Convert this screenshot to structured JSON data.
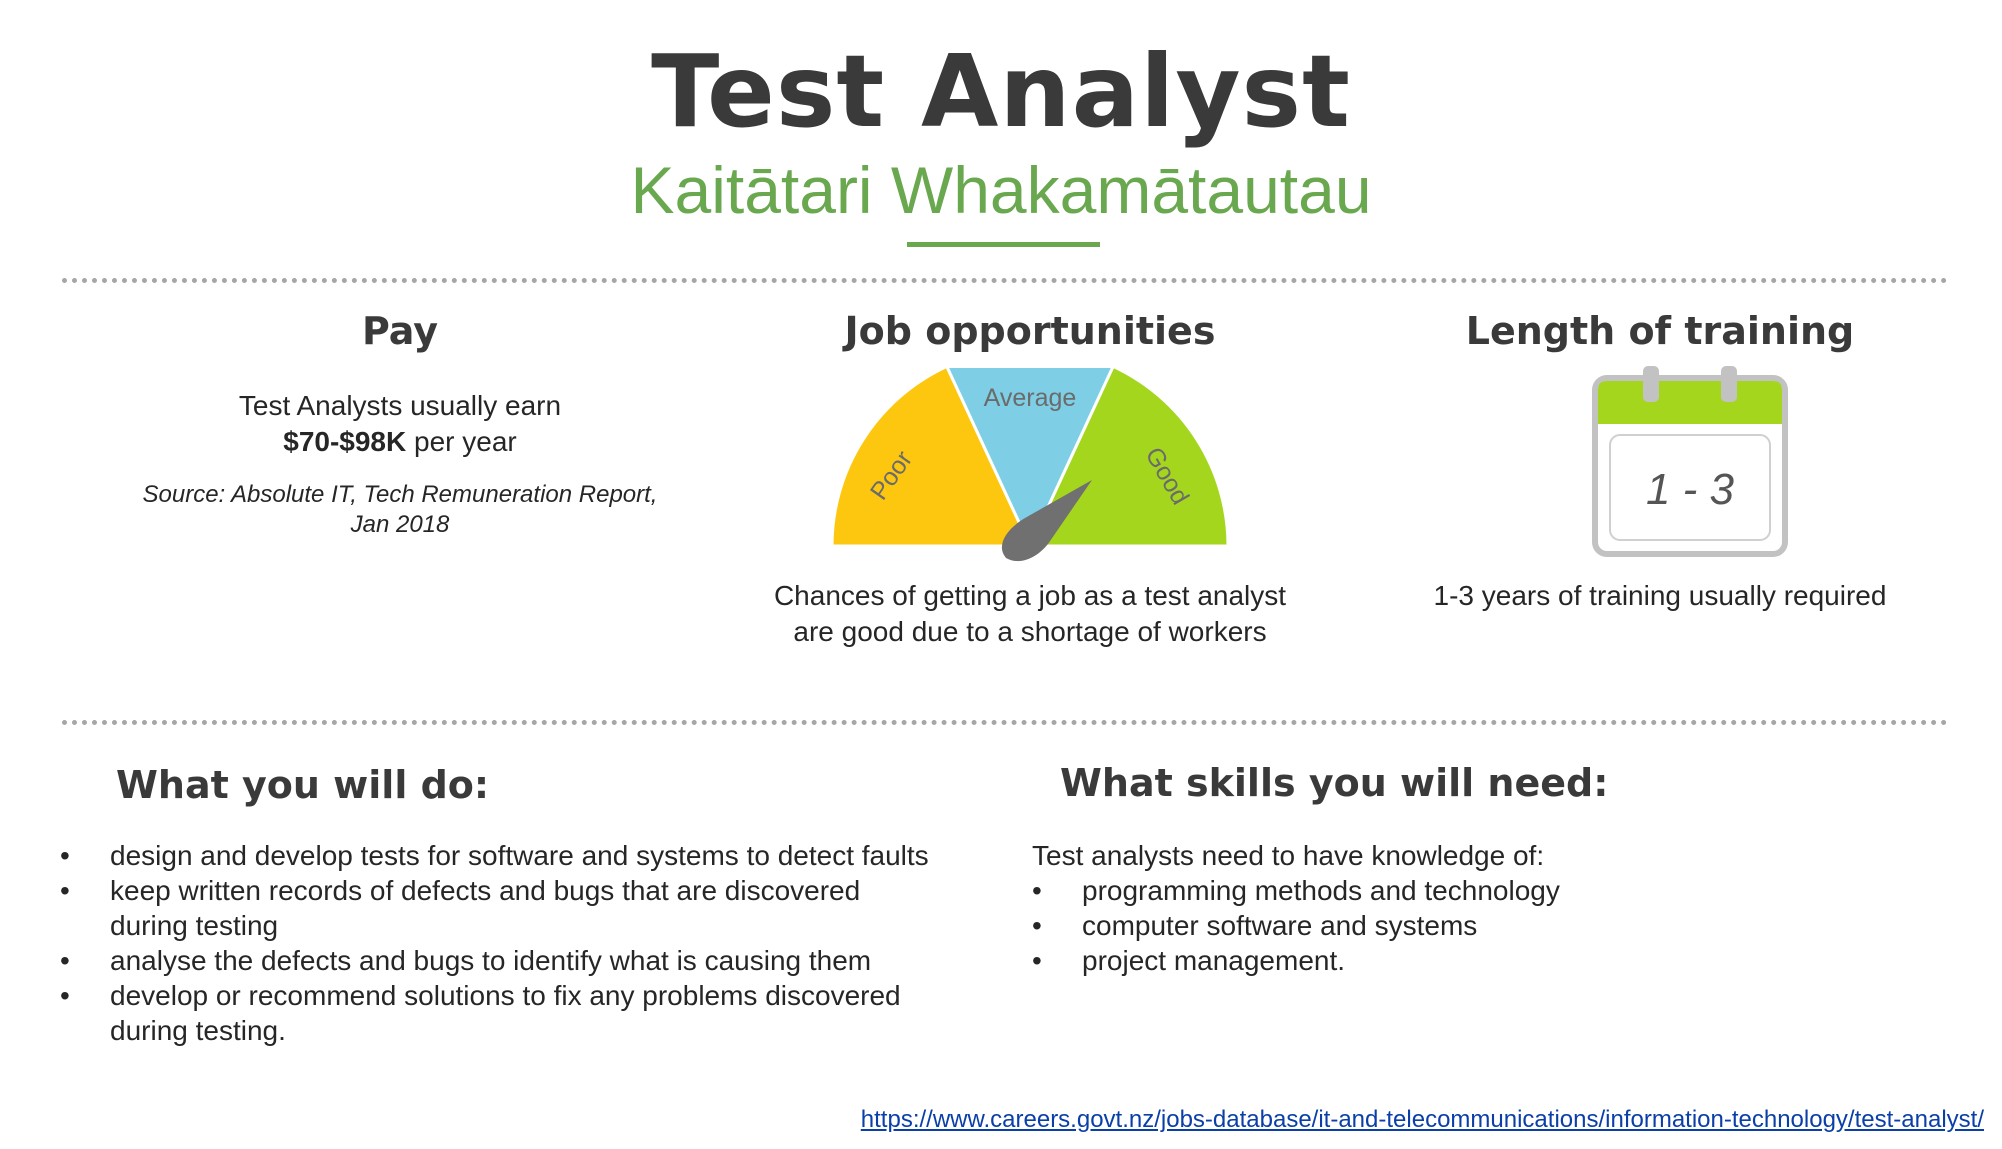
{
  "header": {
    "title": "Test Analyst",
    "subtitle": "Kaitātari Whakamātautau"
  },
  "pay": {
    "heading": "Pay",
    "line1": "Test Analysts usually earn",
    "amount": "$70-$98K",
    "amount_suffix": " per year",
    "source_line1": "Source: Absolute IT, Tech Remuneration Report,",
    "source_line2": "Jan 2018"
  },
  "job_opportunities": {
    "heading": "Job opportunities",
    "gauge": {
      "segments": [
        {
          "label": "Poor",
          "color": "#fdc70f"
        },
        {
          "label": "Average",
          "color": "#7ecfe6"
        },
        {
          "label": "Good",
          "color": "#a4d61d"
        }
      ],
      "level": "Good",
      "needle_color": "#707070"
    },
    "caption_line1": "Chances of getting a job as a test analyst",
    "caption_line2": "are good due to a shortage of workers"
  },
  "training": {
    "heading": "Length of training",
    "calendar_value": "1 - 3",
    "calendar_accent": "#a4d61d",
    "caption": "1-3 years of training usually required"
  },
  "what_you_will_do": {
    "heading": "What you will do:",
    "items": [
      {
        "line1": "design and develop tests for software and systems to detect faults",
        "line2": ""
      },
      {
        "line1": "keep written records of defects and bugs that are discovered",
        "line2": "during testing"
      },
      {
        "line1": "analyse the defects and bugs to identify what is causing them",
        "line2": ""
      },
      {
        "line1": "develop or recommend solutions to fix any problems discovered",
        "line2": "during testing."
      }
    ]
  },
  "skills": {
    "heading": "What skills you will need:",
    "intro": "Test analysts need to have knowledge of:",
    "items": [
      "programming methods and technology",
      "computer software and systems",
      "project management."
    ]
  },
  "footer": {
    "link": "https://www.careers.govt.nz/jobs-database/it-and-telecommunications/information-technology/test-analyst/"
  },
  "colors": {
    "accent_green": "#6aa84f",
    "title_gray": "#3a3a3a",
    "divider_gray": "#a6a6a6",
    "link_blue": "#0b3fa8"
  }
}
